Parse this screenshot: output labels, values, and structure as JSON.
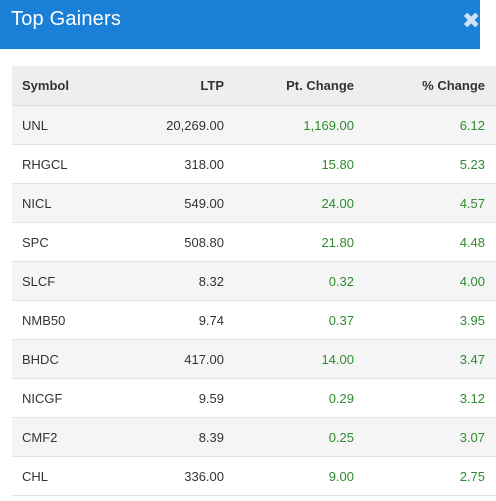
{
  "modal": {
    "title": "Top Gainers",
    "close_label": "✖"
  },
  "table": {
    "headers": {
      "symbol": "Symbol",
      "ltp": "LTP",
      "pt_change": "Pt. Change",
      "pct_change": "% Change"
    },
    "rows": [
      {
        "symbol": "UNL",
        "ltp": "20,269.00",
        "pt_change": "1,169.00",
        "pct_change": "6.12"
      },
      {
        "symbol": "RHGCL",
        "ltp": "318.00",
        "pt_change": "15.80",
        "pct_change": "5.23"
      },
      {
        "symbol": "NICL",
        "ltp": "549.00",
        "pt_change": "24.00",
        "pct_change": "4.57"
      },
      {
        "symbol": "SPC",
        "ltp": "508.80",
        "pt_change": "21.80",
        "pct_change": "4.48"
      },
      {
        "symbol": "SLCF",
        "ltp": "8.32",
        "pt_change": "0.32",
        "pct_change": "4.00"
      },
      {
        "symbol": "NMB50",
        "ltp": "9.74",
        "pt_change": "0.37",
        "pct_change": "3.95"
      },
      {
        "symbol": "BHDC",
        "ltp": "417.00",
        "pt_change": "14.00",
        "pct_change": "3.47"
      },
      {
        "symbol": "NICGF",
        "ltp": "9.59",
        "pt_change": "0.29",
        "pct_change": "3.12"
      },
      {
        "symbol": "CMF2",
        "ltp": "8.39",
        "pt_change": "0.25",
        "pct_change": "3.07"
      },
      {
        "symbol": "CHL",
        "ltp": "336.00",
        "pt_change": "9.00",
        "pct_change": "2.75"
      }
    ]
  },
  "colors": {
    "header_bg": "#1a7fd6",
    "gain_text": "#2e8b2e",
    "table_header_bg": "#eeeeee",
    "row_stripe": "#f5f5f5"
  }
}
